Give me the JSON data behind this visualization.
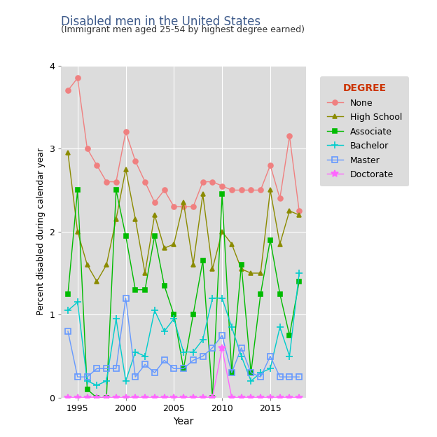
{
  "title": "Disabled men in the United States",
  "subtitle": "(Immigrant men aged 25-54 by highest degree earned)",
  "xlabel": "Year",
  "ylabel": "Percent disabled during calendar year",
  "title_color": "#3D5A8A",
  "subtitle_color": "#333333",
  "background_color": "#DCDCDC",
  "years": [
    1994,
    1995,
    1996,
    1997,
    1998,
    1999,
    2000,
    2001,
    2002,
    2003,
    2004,
    2005,
    2006,
    2007,
    2008,
    2009,
    2010,
    2011,
    2012,
    2013,
    2014,
    2015,
    2016,
    2017,
    2018
  ],
  "series": {
    "None": [
      3.7,
      3.85,
      3.0,
      2.8,
      2.6,
      2.6,
      3.2,
      2.85,
      2.6,
      2.35,
      2.5,
      2.3,
      2.3,
      2.3,
      2.6,
      2.6,
      2.55,
      2.5,
      2.5,
      2.5,
      2.5,
      2.8,
      2.4,
      3.15,
      2.25
    ],
    "High School": [
      2.95,
      2.0,
      1.6,
      1.4,
      1.6,
      2.15,
      2.75,
      2.15,
      1.5,
      2.2,
      1.8,
      1.85,
      2.35,
      1.6,
      2.45,
      1.55,
      2.0,
      1.85,
      1.55,
      1.5,
      1.5,
      2.5,
      1.85,
      2.25,
      2.2
    ],
    "Associate": [
      1.25,
      2.5,
      0.1,
      0.0,
      0.0,
      2.5,
      1.95,
      1.3,
      1.3,
      1.95,
      1.35,
      1.0,
      0.35,
      1.0,
      1.65,
      0.0,
      2.45,
      0.3,
      1.6,
      0.3,
      1.25,
      1.9,
      1.25,
      0.75,
      1.4
    ],
    "Bachelor": [
      1.05,
      1.15,
      0.2,
      0.15,
      0.2,
      0.95,
      0.2,
      0.55,
      0.5,
      1.05,
      0.8,
      0.95,
      0.55,
      0.55,
      0.7,
      1.2,
      1.2,
      0.85,
      0.5,
      0.2,
      0.3,
      0.35,
      0.85,
      0.5,
      1.5
    ],
    "Master": [
      0.8,
      0.25,
      0.25,
      0.35,
      0.35,
      0.35,
      1.2,
      0.25,
      0.4,
      0.3,
      0.45,
      0.35,
      0.35,
      0.45,
      0.5,
      0.6,
      0.75,
      0.3,
      0.6,
      0.3,
      0.25,
      0.5,
      0.25,
      0.25,
      0.25
    ],
    "Doctorate": [
      0.0,
      0.0,
      0.0,
      0.0,
      0.0,
      0.0,
      0.0,
      0.0,
      0.0,
      0.0,
      0.0,
      0.0,
      0.0,
      0.0,
      0.0,
      0.0,
      0.6,
      0.0,
      0.0,
      0.0,
      0.0,
      0.0,
      0.0,
      0.0,
      0.0
    ]
  },
  "series_order": [
    "None",
    "High School",
    "Associate",
    "Bachelor",
    "Master",
    "Doctorate"
  ],
  "colors": {
    "None": "#F08080",
    "High School": "#8B8B00",
    "Associate": "#00BB00",
    "Bachelor": "#00CCCC",
    "Master": "#6699FF",
    "Doctorate": "#FF66FF"
  },
  "markers": {
    "None": "o",
    "High School": "^",
    "Associate": "s",
    "Bachelor": "+",
    "Master": "s",
    "Doctorate": "*"
  },
  "marker_hollow": {
    "None": false,
    "High School": false,
    "Associate": false,
    "Bachelor": false,
    "Master": true,
    "Doctorate": false
  },
  "legend_title_color": "#CC3300",
  "ylim": [
    0,
    4
  ],
  "yticks": [
    0,
    1,
    2,
    3,
    4
  ],
  "xticks": [
    1995,
    2000,
    2005,
    2010,
    2015
  ]
}
